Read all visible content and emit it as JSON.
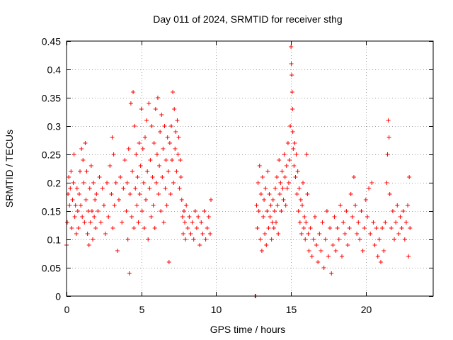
{
  "chart_data": {
    "type": "scatter",
    "title": "Day 011 of 2024, SRMTID for receiver sthg",
    "xlabel": "GPS time / hours",
    "ylabel": "SRMTID / TECUs",
    "xlim": [
      0,
      24.5
    ],
    "ylim": [
      0,
      0.45
    ],
    "xticks": [
      0,
      5,
      10,
      15,
      20
    ],
    "xtick_labels": [
      "0",
      "5",
      "10",
      "15",
      "20"
    ],
    "yticks": [
      0,
      0.05,
      0.1,
      0.15,
      0.2,
      0.25,
      0.3,
      0.35,
      0.4,
      0.45
    ],
    "ytick_labels": [
      "0",
      "0.05",
      "0.1",
      "0.15",
      "0.2",
      "0.25",
      "0.3",
      "0.35",
      "0.4",
      "0.45"
    ],
    "grid": true,
    "marker": "plus",
    "color": "#ff0000",
    "series": [
      {
        "name": "SRMTID",
        "points": [
          [
            0.0,
            0.09
          ],
          [
            0.05,
            0.13
          ],
          [
            0.1,
            0.18
          ],
          [
            0.15,
            0.21
          ],
          [
            0.2,
            0.16
          ],
          [
            0.25,
            0.19
          ],
          [
            0.3,
            0.22
          ],
          [
            0.35,
            0.12
          ],
          [
            0.4,
            0.17
          ],
          [
            0.45,
            0.2
          ],
          [
            0.5,
            0.25
          ],
          [
            0.55,
            0.14
          ],
          [
            0.6,
            0.16
          ],
          [
            0.65,
            0.11
          ],
          [
            0.7,
            0.19
          ],
          [
            0.75,
            0.15
          ],
          [
            0.8,
            0.12
          ],
          [
            0.85,
            0.18
          ],
          [
            0.9,
            0.22
          ],
          [
            0.95,
            0.16
          ],
          [
            1.0,
            0.26
          ],
          [
            1.05,
            0.14
          ],
          [
            1.1,
            0.24
          ],
          [
            1.15,
            0.2
          ],
          [
            1.2,
            0.13
          ],
          [
            1.25,
            0.27
          ],
          [
            1.3,
            0.17
          ],
          [
            1.35,
            0.22
          ],
          [
            1.4,
            0.11
          ],
          [
            1.45,
            0.15
          ],
          [
            1.5,
            0.09
          ],
          [
            1.55,
            0.19
          ],
          [
            1.6,
            0.13
          ],
          [
            1.65,
            0.23
          ],
          [
            1.7,
            0.15
          ],
          [
            1.75,
            0.1
          ],
          [
            1.8,
            0.2
          ],
          [
            1.85,
            0.14
          ],
          [
            1.9,
            0.17
          ],
          [
            1.95,
            0.12
          ],
          [
            2.0,
            0.18
          ],
          [
            2.1,
            0.15
          ],
          [
            2.2,
            0.21
          ],
          [
            2.3,
            0.13
          ],
          [
            2.4,
            0.19
          ],
          [
            2.5,
            0.16
          ],
          [
            2.6,
            0.11
          ],
          [
            2.7,
            0.2
          ],
          [
            2.8,
            0.14
          ],
          [
            2.9,
            0.23
          ],
          [
            3.0,
            0.18
          ],
          [
            3.05,
            0.28
          ],
          [
            3.1,
            0.12
          ],
          [
            3.15,
            0.25
          ],
          [
            3.2,
            0.16
          ],
          [
            3.3,
            0.2
          ],
          [
            3.4,
            0.08
          ],
          [
            3.5,
            0.17
          ],
          [
            3.6,
            0.21
          ],
          [
            3.7,
            0.13
          ],
          [
            3.8,
            0.19
          ],
          [
            3.9,
            0.24
          ],
          [
            4.0,
            0.15
          ],
          [
            4.05,
            0.2
          ],
          [
            4.1,
            0.1
          ],
          [
            4.15,
            0.26
          ],
          [
            4.2,
            0.04
          ],
          [
            4.25,
            0.18
          ],
          [
            4.3,
            0.34
          ],
          [
            4.35,
            0.14
          ],
          [
            4.4,
            0.22
          ],
          [
            4.45,
            0.36
          ],
          [
            4.5,
            0.12
          ],
          [
            4.55,
            0.3
          ],
          [
            4.6,
            0.19
          ],
          [
            4.65,
            0.25
          ],
          [
            4.7,
            0.16
          ],
          [
            4.75,
            0.21
          ],
          [
            4.8,
            0.13
          ],
          [
            4.85,
            0.27
          ],
          [
            4.9,
            0.18
          ],
          [
            4.95,
            0.23
          ],
          [
            5.0,
            0.33
          ],
          [
            5.05,
            0.15
          ],
          [
            5.1,
            0.26
          ],
          [
            5.15,
            0.2
          ],
          [
            5.2,
            0.12
          ],
          [
            5.25,
            0.28
          ],
          [
            5.3,
            0.17
          ],
          [
            5.35,
            0.31
          ],
          [
            5.4,
            0.22
          ],
          [
            5.45,
            0.1
          ],
          [
            5.5,
            0.34
          ],
          [
            5.55,
            0.19
          ],
          [
            5.6,
            0.24
          ],
          [
            5.65,
            0.14
          ],
          [
            5.7,
            0.3
          ],
          [
            5.75,
            0.21
          ],
          [
            5.8,
            0.16
          ],
          [
            5.85,
            0.27
          ],
          [
            5.9,
            0.12
          ],
          [
            5.95,
            0.33
          ],
          [
            6.0,
            0.2
          ],
          [
            6.05,
            0.25
          ],
          [
            6.1,
            0.35
          ],
          [
            6.15,
            0.18
          ],
          [
            6.2,
            0.23
          ],
          [
            6.25,
            0.29
          ],
          [
            6.3,
            0.15
          ],
          [
            6.35,
            0.32
          ],
          [
            6.4,
            0.21
          ],
          [
            6.45,
            0.26
          ],
          [
            6.5,
            0.13
          ],
          [
            6.55,
            0.3
          ],
          [
            6.6,
            0.19
          ],
          [
            6.65,
            0.24
          ],
          [
            6.7,
            0.16
          ],
          [
            6.75,
            0.28
          ],
          [
            6.8,
            0.22
          ],
          [
            6.85,
            0.06
          ],
          [
            6.9,
            0.27
          ],
          [
            6.95,
            0.18
          ],
          [
            7.0,
            0.3
          ],
          [
            7.05,
            0.24
          ],
          [
            7.1,
            0.36
          ],
          [
            7.15,
            0.2
          ],
          [
            7.2,
            0.33
          ],
          [
            7.25,
            0.26
          ],
          [
            7.3,
            0.29
          ],
          [
            7.35,
            0.22
          ],
          [
            7.4,
            0.31
          ],
          [
            7.45,
            0.25
          ],
          [
            7.5,
            0.28
          ],
          [
            7.55,
            0.19
          ],
          [
            7.6,
            0.24
          ],
          [
            7.65,
            0.21
          ],
          [
            7.7,
            0.17
          ],
          [
            7.75,
            0.14
          ],
          [
            7.8,
            0.11
          ],
          [
            7.85,
            0.15
          ],
          [
            7.9,
            0.13
          ],
          [
            7.95,
            0.1
          ],
          [
            8.0,
            0.16
          ],
          [
            8.1,
            0.12
          ],
          [
            8.2,
            0.14
          ],
          [
            8.3,
            0.11
          ],
          [
            8.4,
            0.13
          ],
          [
            8.5,
            0.1
          ],
          [
            8.6,
            0.15
          ],
          [
            8.7,
            0.12
          ],
          [
            8.8,
            0.14
          ],
          [
            8.9,
            0.09
          ],
          [
            9.0,
            0.13
          ],
          [
            9.1,
            0.11
          ],
          [
            9.2,
            0.15
          ],
          [
            9.3,
            0.1
          ],
          [
            9.4,
            0.12
          ],
          [
            9.5,
            0.14
          ],
          [
            9.6,
            0.11
          ],
          [
            9.65,
            0.17
          ],
          [
            12.6,
            0.0
          ],
          [
            12.65,
            0.0
          ],
          [
            12.7,
            0.16
          ],
          [
            12.75,
            0.12
          ],
          [
            12.8,
            0.2
          ],
          [
            12.85,
            0.15
          ],
          [
            12.9,
            0.23
          ],
          [
            12.95,
            0.1
          ],
          [
            13.0,
            0.18
          ],
          [
            13.05,
            0.08
          ],
          [
            13.1,
            0.21
          ],
          [
            13.15,
            0.14
          ],
          [
            13.2,
            0.17
          ],
          [
            13.25,
            0.11
          ],
          [
            13.3,
            0.19
          ],
          [
            13.35,
            0.09
          ],
          [
            13.4,
            0.15
          ],
          [
            13.45,
            0.22
          ],
          [
            13.5,
            0.12
          ],
          [
            13.55,
            0.18
          ],
          [
            13.6,
            0.14
          ],
          [
            13.65,
            0.16
          ],
          [
            13.7,
            0.1
          ],
          [
            13.75,
            0.13
          ],
          [
            13.8,
            0.17
          ],
          [
            13.85,
            0.12
          ],
          [
            13.9,
            0.15
          ],
          [
            13.95,
            0.19
          ],
          [
            14.0,
            0.13
          ],
          [
            14.05,
            0.21
          ],
          [
            14.1,
            0.16
          ],
          [
            14.15,
            0.11
          ],
          [
            14.2,
            0.24
          ],
          [
            14.25,
            0.18
          ],
          [
            14.3,
            0.2
          ],
          [
            14.35,
            0.15
          ],
          [
            14.4,
            0.22
          ],
          [
            14.45,
            0.19
          ],
          [
            14.5,
            0.17
          ],
          [
            14.55,
            0.25
          ],
          [
            14.6,
            0.21
          ],
          [
            14.65,
            0.16
          ],
          [
            14.7,
            0.23
          ],
          [
            14.75,
            0.19
          ],
          [
            14.8,
            0.27
          ],
          [
            14.85,
            0.2
          ],
          [
            14.9,
            0.24
          ],
          [
            14.95,
            0.3
          ],
          [
            15.0,
            0.44
          ],
          [
            15.02,
            0.41
          ],
          [
            15.05,
            0.39
          ],
          [
            15.08,
            0.36
          ],
          [
            15.1,
            0.33
          ],
          [
            15.12,
            0.29
          ],
          [
            15.15,
            0.26
          ],
          [
            15.2,
            0.23
          ],
          [
            15.25,
            0.27
          ],
          [
            15.3,
            0.21
          ],
          [
            15.35,
            0.25
          ],
          [
            15.4,
            0.18
          ],
          [
            15.45,
            0.22
          ],
          [
            15.5,
            0.15
          ],
          [
            15.55,
            0.19
          ],
          [
            15.6,
            0.13
          ],
          [
            15.65,
            0.17
          ],
          [
            15.7,
            0.11
          ],
          [
            15.75,
            0.16
          ],
          [
            15.8,
            0.2
          ],
          [
            15.85,
            0.12
          ],
          [
            15.9,
            0.14
          ],
          [
            15.95,
            0.1
          ],
          [
            16.0,
            0.13
          ],
          [
            16.05,
            0.25
          ],
          [
            16.1,
            0.18
          ],
          [
            16.15,
            0.11
          ],
          [
            16.2,
            0.08
          ],
          [
            16.3,
            0.12
          ],
          [
            16.4,
            0.07
          ],
          [
            16.5,
            0.1
          ],
          [
            16.6,
            0.14
          ],
          [
            16.7,
            0.09
          ],
          [
            16.8,
            0.06
          ],
          [
            16.9,
            0.11
          ],
          [
            17.0,
            0.08
          ],
          [
            17.1,
            0.13
          ],
          [
            17.2,
            0.05
          ],
          [
            17.3,
            0.1
          ],
          [
            17.4,
            0.15
          ],
          [
            17.5,
            0.07
          ],
          [
            17.6,
            0.12
          ],
          [
            17.7,
            0.04
          ],
          [
            17.8,
            0.09
          ],
          [
            17.9,
            0.14
          ],
          [
            18.0,
            0.08
          ],
          [
            18.1,
            0.12
          ],
          [
            18.2,
            0.1
          ],
          [
            18.3,
            0.16
          ],
          [
            18.4,
            0.07
          ],
          [
            18.5,
            0.13
          ],
          [
            18.6,
            0.11
          ],
          [
            18.7,
            0.15
          ],
          [
            18.8,
            0.09
          ],
          [
            18.9,
            0.12
          ],
          [
            19.0,
            0.18
          ],
          [
            19.1,
            0.14
          ],
          [
            19.2,
            0.21
          ],
          [
            19.3,
            0.16
          ],
          [
            19.4,
            0.11
          ],
          [
            19.5,
            0.13
          ],
          [
            19.6,
            0.1
          ],
          [
            19.7,
            0.15
          ],
          [
            19.8,
            0.08
          ],
          [
            19.9,
            0.12
          ],
          [
            20.0,
            0.17
          ],
          [
            20.1,
            0.14
          ],
          [
            20.2,
            0.19
          ],
          [
            20.3,
            0.11
          ],
          [
            20.4,
            0.2
          ],
          [
            20.5,
            0.13
          ],
          [
            20.6,
            0.09
          ],
          [
            20.7,
            0.12
          ],
          [
            20.8,
            0.07
          ],
          [
            20.9,
            0.1
          ],
          [
            21.0,
            0.06
          ],
          [
            21.1,
            0.12
          ],
          [
            21.2,
            0.08
          ],
          [
            21.3,
            0.13
          ],
          [
            21.4,
            0.2
          ],
          [
            21.45,
            0.25
          ],
          [
            21.5,
            0.31
          ],
          [
            21.55,
            0.28
          ],
          [
            21.6,
            0.18
          ],
          [
            21.7,
            0.12
          ],
          [
            21.8,
            0.15
          ],
          [
            21.9,
            0.1
          ],
          [
            22.0,
            0.13
          ],
          [
            22.1,
            0.16
          ],
          [
            22.2,
            0.11
          ],
          [
            22.3,
            0.14
          ],
          [
            22.4,
            0.12
          ],
          [
            22.5,
            0.15
          ],
          [
            22.6,
            0.1
          ],
          [
            22.7,
            0.13
          ],
          [
            22.8,
            0.16
          ],
          [
            22.85,
            0.07
          ],
          [
            22.9,
            0.21
          ],
          [
            22.95,
            0.12
          ]
        ]
      }
    ]
  }
}
